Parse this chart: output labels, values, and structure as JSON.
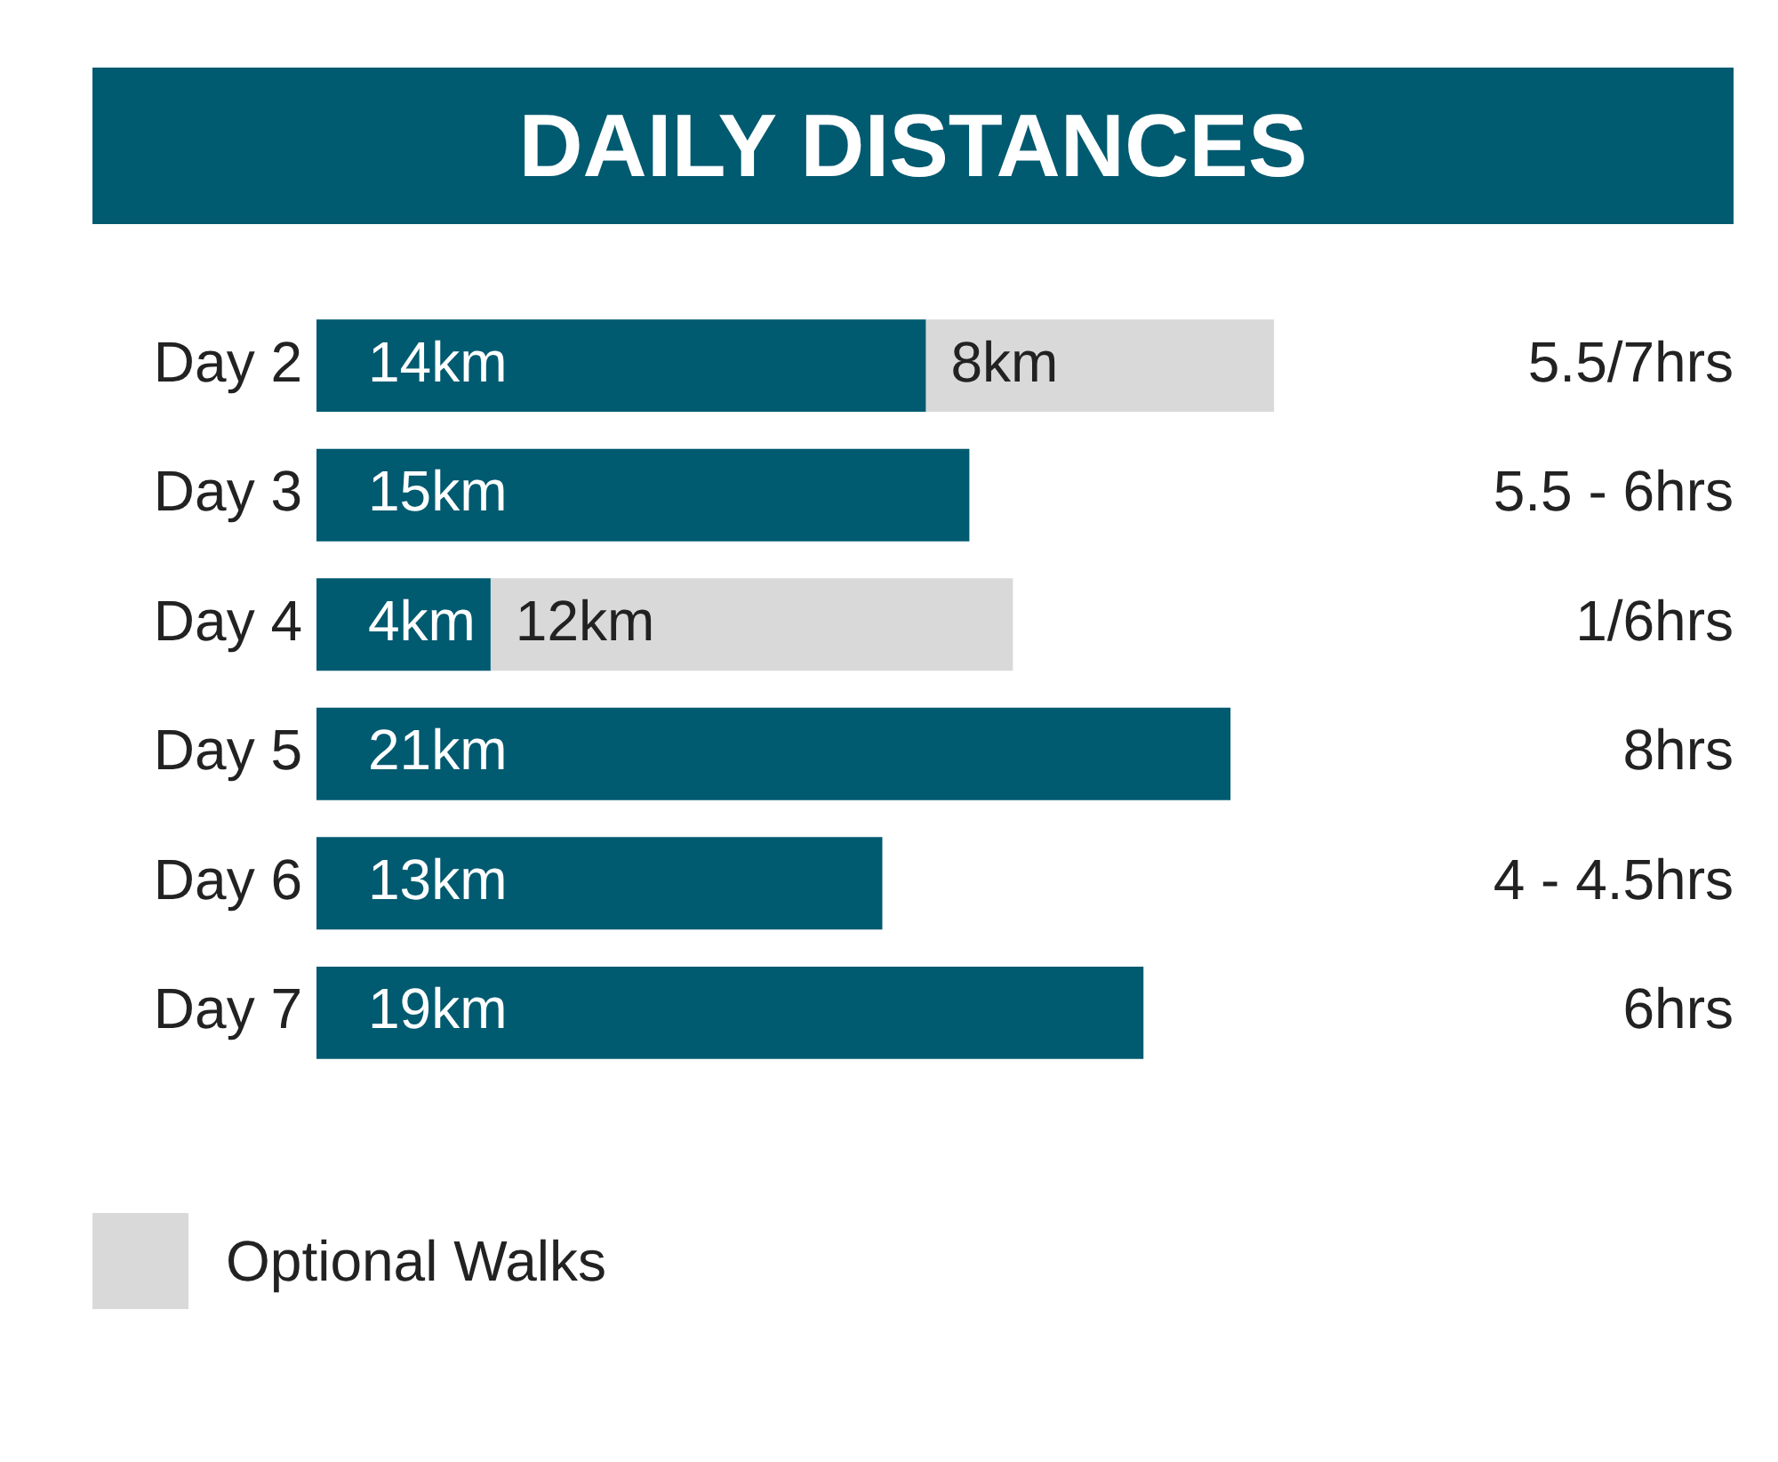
{
  "chart_data": {
    "type": "bar",
    "orientation": "horizontal",
    "stacked": true,
    "title": "DAILY DISTANCES",
    "categories": [
      "Day 2",
      "Day 3",
      "Day 4",
      "Day 5",
      "Day 6",
      "Day 7"
    ],
    "series": [
      {
        "color": "#005a70",
        "values": [
          14,
          15,
          4,
          21,
          13,
          19
        ],
        "value_labels": [
          "14km",
          "15km",
          "4km",
          "21km",
          "13km",
          "19km"
        ]
      },
      {
        "name": "Optional Walks",
        "color": "#d9d9d9",
        "values": [
          8,
          null,
          12,
          null,
          null,
          null
        ],
        "value_labels": [
          "8km",
          null,
          "12km",
          null,
          null,
          null
        ]
      }
    ],
    "annotations": [
      "5.5/7hrs",
      "5.5 - 6hrs",
      "1/6hrs",
      "8hrs",
      "4 - 4.5hrs",
      "6hrs"
    ],
    "legend": "bottom left",
    "grid": false,
    "tick_labels": "y"
  }
}
